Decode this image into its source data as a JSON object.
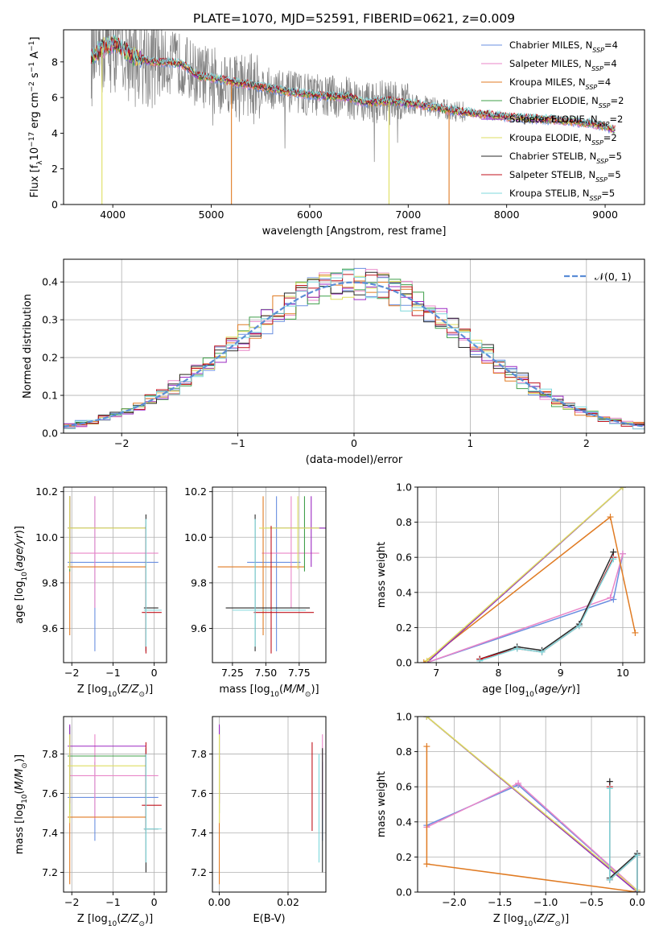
{
  "title": "PLATE=1070, MJD=52591, FIBERID=0621, z=0.009",
  "colors": {
    "Chabrier MILES": "#6a8fe0",
    "Salpeter MILES": "#e986c8",
    "Kroupa MILES": "#e07b23",
    "Chabrier ELODIE": "#3f9f4a",
    "Salpeter ELODIE": "#9b29c2",
    "Kroupa ELODIE": "#dede60",
    "Chabrier STELIB": "#2a2a2a",
    "Salpeter STELIB": "#c0121c",
    "Kroupa STELIB": "#7fd8dc",
    "data": "#808080",
    "gauss": "#5b8dd6"
  },
  "chart_data": [
    {
      "id": "spectrum",
      "type": "line",
      "xlabel": "wavelength [Angstrom, rest frame]",
      "ylabel_main": "Flux [f",
      "ylabel_sub": "λ",
      "ylabel_rest": "10",
      "ylabel_exp": "−17",
      "ylabel_tail": " erg cm",
      "ylabel_exp2": "−2",
      "ylabel_tail2": " s",
      "ylabel_exp3": "−1",
      "ylabel_tail3": " A",
      "ylabel_exp4": "−1",
      "ylabel_end": "]",
      "xlim": [
        3500,
        9400
      ],
      "ylim": [
        0,
        9.8
      ],
      "xticks": [
        4000,
        5000,
        6000,
        7000,
        8000,
        9000
      ],
      "yticks": [
        0,
        2,
        4,
        6,
        8
      ],
      "continuum": [
        [
          3780,
          8.2
        ],
        [
          3850,
          8.6
        ],
        [
          3950,
          9.0
        ],
        [
          4050,
          8.9
        ],
        [
          4200,
          8.3
        ],
        [
          4400,
          8.0
        ],
        [
          4700,
          7.9
        ],
        [
          4862,
          7.2
        ],
        [
          5000,
          7.1
        ],
        [
          5200,
          6.9
        ],
        [
          5500,
          6.6
        ],
        [
          5800,
          6.3
        ],
        [
          6100,
          6.1
        ],
        [
          6400,
          6.0
        ],
        [
          6563,
          5.7
        ],
        [
          6800,
          5.8
        ],
        [
          7100,
          5.6
        ],
        [
          7400,
          5.3
        ],
        [
          7700,
          5.1
        ],
        [
          8000,
          4.9
        ],
        [
          8300,
          4.8
        ],
        [
          8600,
          4.7
        ],
        [
          8900,
          4.5
        ],
        [
          9100,
          4.2
        ]
      ],
      "legend": [
        {
          "name": "Chabrier MILES",
          "n": "4"
        },
        {
          "name": "Salpeter MILES",
          "n": "4"
        },
        {
          "name": "Kroupa MILES",
          "n": "4"
        },
        {
          "name": "Chabrier ELODIE",
          "n": "2"
        },
        {
          "name": "Salpeter ELODIE",
          "n": "2"
        },
        {
          "name": "Kroupa ELODIE",
          "n": "2"
        },
        {
          "name": "Chabrier STELIB",
          "n": "5"
        },
        {
          "name": "Salpeter STELIB",
          "n": "5"
        },
        {
          "name": "Kroupa STELIB",
          "n": "5"
        }
      ],
      "legend_nsub": "SSP"
    },
    {
      "id": "residuals",
      "type": "histogram",
      "xlabel": "(data-model)/error",
      "ylabel": "Normed distribution",
      "xlim": [
        -2.5,
        2.5
      ],
      "ylim": [
        0,
        0.46
      ],
      "xticks": [
        -2,
        -1,
        0,
        1,
        2
      ],
      "yticks": [
        0,
        0.1,
        0.2,
        0.3,
        0.4
      ],
      "legend": "𝒩(0, 1)",
      "bin_width": 0.1
    },
    {
      "id": "age-vs-Z",
      "type": "errorbar",
      "xlabel": "Z [log10(Z/Z⊙)]",
      "ylabel": "age  [log10(age/yr)]",
      "xlim": [
        -2.2,
        0.3
      ],
      "ylim": [
        9.45,
        10.22
      ],
      "xticks": [
        -2,
        -1,
        0
      ],
      "yticks": [
        9.6,
        9.8,
        10.0,
        10.2
      ]
    },
    {
      "id": "age-vs-mass",
      "type": "errorbar",
      "xlabel": "mass [log10(M/M⊙)]",
      "xlim": [
        7.1,
        7.95
      ],
      "ylim": [
        9.45,
        10.22
      ],
      "xticks": [
        7.25,
        7.5,
        7.75
      ],
      "yticks": [
        9.6,
        9.8,
        10.0,
        10.2
      ]
    },
    {
      "id": "weight-vs-age",
      "type": "line",
      "xlabel": "age  [log10(age/yr)]",
      "ylabel": "mass weight",
      "xlim": [
        6.7,
        10.35
      ],
      "ylim": [
        0,
        1.0
      ],
      "xticks": [
        7,
        8,
        9,
        10
      ],
      "yticks": [
        0.0,
        0.2,
        0.4,
        0.6,
        0.8,
        1.0
      ]
    },
    {
      "id": "mass-vs-Z",
      "type": "errorbar",
      "xlabel": "Z [log10(Z/Z⊙)]",
      "ylabel": "mass [log10(M/M⊙)]",
      "xlim": [
        -2.2,
        0.3
      ],
      "ylim": [
        7.1,
        7.99
      ],
      "xticks": [
        -2,
        -1,
        0
      ],
      "yticks": [
        7.2,
        7.4,
        7.6,
        7.8
      ]
    },
    {
      "id": "mass-vs-ebv",
      "type": "errorbar",
      "xlabel": "E(B-V)",
      "xlim": [
        -0.002,
        0.031
      ],
      "ylim": [
        7.1,
        7.99
      ],
      "xticks": [
        0.0,
        0.02
      ],
      "yticks": [
        7.2,
        7.4,
        7.6,
        7.8
      ]
    },
    {
      "id": "weight-vs-Z",
      "type": "line",
      "xlabel": "Z [log10(Z/Z⊙)]",
      "ylabel": "mass weight",
      "xlim": [
        -2.4,
        0.08
      ],
      "ylim": [
        0,
        1.0
      ],
      "xticks": [
        -2.0,
        -1.5,
        -1.0,
        -0.5,
        0.0
      ],
      "yticks": [
        0.0,
        0.2,
        0.4,
        0.6,
        0.8,
        1.0
      ]
    }
  ],
  "models": [
    {
      "name": "Chabrier MILES",
      "age": 9.89,
      "age_lo": 9.5,
      "age_hi": 10.18,
      "Z": -1.44,
      "Z_lo": -2.1,
      "Z_hi": 0.1,
      "mass": 7.58,
      "mass_lo": 7.36,
      "mass_hi": 7.76,
      "ebv": 0.03,
      "w_age": [
        [
          6.85,
          0.0
        ],
        [
          9.85,
          0.36
        ],
        [
          10.0,
          0.62
        ]
      ],
      "w_Z": [
        [
          -2.3,
          0.38
        ],
        [
          -1.3,
          0.61
        ],
        [
          0.0,
          0.01
        ]
      ]
    },
    {
      "name": "Salpeter MILES",
      "age": 9.93,
      "age_lo": 9.69,
      "age_hi": 10.18,
      "Z": -1.44,
      "Z_lo": -2.05,
      "Z_hi": 0.1,
      "mass": 7.69,
      "mass_lo": 7.47,
      "mass_hi": 7.9,
      "ebv": 0.03,
      "w_age": [
        [
          6.85,
          0.0
        ],
        [
          9.8,
          0.37
        ],
        [
          10.0,
          0.62
        ]
      ],
      "w_Z": [
        [
          -2.3,
          0.37
        ],
        [
          -1.3,
          0.62
        ],
        [
          0.0,
          0.01
        ]
      ]
    },
    {
      "name": "Kroupa MILES",
      "age": 9.87,
      "age_lo": 9.57,
      "age_hi": 10.18,
      "Z": -2.05,
      "Z_lo": -2.1,
      "Z_hi": -0.2,
      "mass": 7.48,
      "mass_lo": 7.14,
      "mass_hi": 7.79,
      "ebv": 0.0,
      "w_age": [
        [
          6.8,
          0.0
        ],
        [
          9.8,
          0.83
        ],
        [
          10.2,
          0.17
        ]
      ],
      "w_Z": [
        [
          -2.3,
          0.83
        ],
        [
          -2.3,
          0.16
        ],
        [
          0.0,
          0.0
        ]
      ]
    },
    {
      "name": "Chabrier ELODIE",
      "age": 10.04,
      "age_lo": 9.85,
      "age_hi": 10.18,
      "Z": -2.05,
      "Z_lo": -2.1,
      "Z_hi": -0.2,
      "mass": 7.79,
      "mass_lo": 7.5,
      "mass_hi": 7.94,
      "ebv": 0.0,
      "w_age": [
        [
          6.85,
          0.0
        ],
        [
          10.0,
          1.0
        ]
      ],
      "w_Z": [
        [
          -2.3,
          1.0
        ],
        [
          0.0,
          0.0
        ]
      ]
    },
    {
      "name": "Salpeter ELODIE",
      "age": 10.04,
      "age_lo": 9.87,
      "age_hi": 10.18,
      "Z": -2.05,
      "Z_lo": -2.1,
      "Z_hi": -0.2,
      "mass": 7.84,
      "mass_lo": 7.55,
      "mass_hi": 7.95,
      "ebv": 0.0,
      "w_age": [
        [
          6.85,
          0.0
        ],
        [
          10.0,
          1.0
        ]
      ],
      "w_Z": [
        [
          -2.3,
          1.0
        ],
        [
          0.0,
          0.0
        ]
      ]
    },
    {
      "name": "Kroupa ELODIE",
      "age": 10.04,
      "age_lo": 9.86,
      "age_hi": 10.18,
      "Z": -2.05,
      "Z_lo": -2.1,
      "Z_hi": -0.2,
      "mass": 7.74,
      "mass_lo": 7.45,
      "mass_hi": 7.9,
      "ebv": 0.0,
      "w_age": [
        [
          6.85,
          0.01
        ],
        [
          10.0,
          1.0
        ]
      ],
      "w_Z": [
        [
          -2.3,
          1.0
        ],
        [
          0.0,
          0.01
        ]
      ]
    },
    {
      "name": "Chabrier STELIB",
      "age": 9.69,
      "age_lo": 9.5,
      "age_hi": 10.1,
      "Z": -0.2,
      "Z_lo": -0.25,
      "Z_hi": 0.1,
      "mass": 7.42,
      "mass_lo": 7.2,
      "mass_hi": 7.83,
      "ebv": 0.03,
      "w_age": [
        [
          7.7,
          0.02
        ],
        [
          8.3,
          0.09
        ],
        [
          8.7,
          0.07
        ],
        [
          9.3,
          0.22
        ],
        [
          9.85,
          0.63
        ]
      ],
      "w_Z": [
        [
          -0.3,
          0.63
        ],
        [
          -0.3,
          0.08
        ],
        [
          0.0,
          0.22
        ],
        [
          0.0,
          0.0
        ]
      ]
    },
    {
      "name": "Salpeter STELIB",
      "age": 9.67,
      "age_lo": 9.49,
      "age_hi": 10.05,
      "Z": -0.2,
      "Z_lo": -0.3,
      "Z_hi": 0.18,
      "mass": 7.54,
      "mass_lo": 7.41,
      "mass_hi": 7.86,
      "ebv": 0.027,
      "w_age": [
        [
          7.7,
          0.02
        ],
        [
          8.3,
          0.08
        ],
        [
          8.7,
          0.06
        ],
        [
          9.3,
          0.21
        ],
        [
          9.85,
          0.6
        ]
      ],
      "w_Z": [
        [
          -0.3,
          0.6
        ],
        [
          -0.3,
          0.07
        ],
        [
          0.0,
          0.21
        ],
        [
          0.0,
          0.0
        ]
      ]
    },
    {
      "name": "Kroupa STELIB",
      "age": 9.68,
      "age_lo": 9.52,
      "age_hi": 10.08,
      "Z": -0.2,
      "Z_lo": -0.25,
      "Z_hi": 0.18,
      "mass": 7.42,
      "mass_lo": 7.25,
      "mass_hi": 7.8,
      "ebv": 0.029,
      "w_age": [
        [
          7.7,
          0.01
        ],
        [
          8.3,
          0.08
        ],
        [
          8.7,
          0.06
        ],
        [
          9.3,
          0.21
        ],
        [
          9.85,
          0.59
        ]
      ],
      "w_Z": [
        [
          -0.3,
          0.59
        ],
        [
          -0.3,
          0.07
        ],
        [
          0.0,
          0.21
        ],
        [
          0.0,
          0.0
        ]
      ]
    }
  ]
}
